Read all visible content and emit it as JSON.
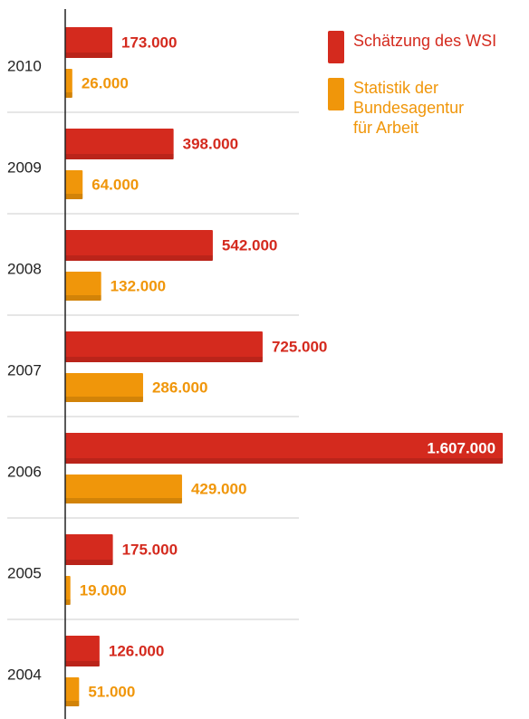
{
  "chart_data": {
    "type": "bar",
    "orientation": "horizontal",
    "categories": [
      "2010",
      "2009",
      "2008",
      "2007",
      "2006",
      "2005",
      "2004"
    ],
    "series": [
      {
        "name": "Schätzung des WSI",
        "color": "#d42a1e",
        "values": [
          173000,
          398000,
          542000,
          725000,
          1607000,
          175000,
          126000
        ],
        "value_labels": [
          "173.000",
          "398.000",
          "542.000",
          "725.000",
          "1.607.000",
          "175.000",
          "126.000"
        ]
      },
      {
        "name": "Statistik der Bundesagentur für Arbeit",
        "color": "#f0960a",
        "values": [
          26000,
          64000,
          132000,
          286000,
          429000,
          19000,
          51000
        ],
        "value_labels": [
          "26.000",
          "64.000",
          "132.000",
          "286.000",
          "429.000",
          "19.000",
          "51.000"
        ]
      }
    ],
    "xlim": [
      0,
      1650000
    ]
  }
}
